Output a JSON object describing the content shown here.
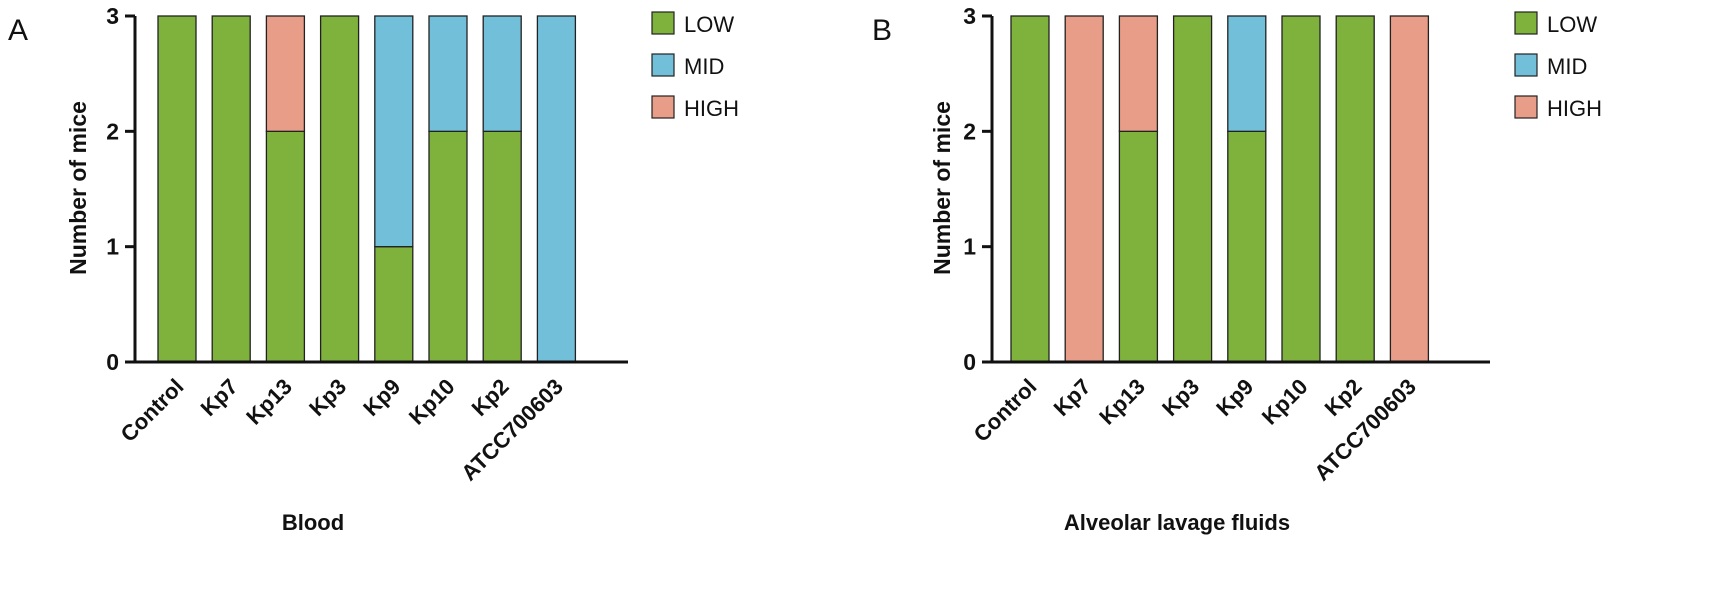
{
  "colors": {
    "LOW": "#7fb13d",
    "MID": "#72bfd9",
    "HIGH": "#e89d88"
  },
  "chart_data": [
    {
      "type": "bar",
      "stacked": true,
      "panel": "A",
      "title": "",
      "xlabel": "Blood",
      "ylabel": "Number of mice",
      "ylim": [
        0,
        3
      ],
      "yticks": [
        "0",
        "1",
        "2",
        "3"
      ],
      "legend": [
        "LOW",
        "MID",
        "HIGH"
      ],
      "legend_position": "right",
      "categories": [
        "Control",
        "Kp7",
        "Kp13",
        "Kp3",
        "Kp9",
        "Kp10",
        "Kp2",
        "ATCC700603"
      ],
      "series": [
        {
          "name": "LOW",
          "values": [
            3,
            3,
            2,
            3,
            1,
            2,
            2,
            0
          ]
        },
        {
          "name": "MID",
          "values": [
            0,
            0,
            0,
            0,
            2,
            1,
            1,
            3
          ]
        },
        {
          "name": "HIGH",
          "values": [
            0,
            0,
            1,
            0,
            0,
            0,
            0,
            0
          ]
        }
      ]
    },
    {
      "type": "bar",
      "stacked": true,
      "panel": "B",
      "title": "",
      "xlabel": "Alveolar lavage fluids",
      "ylabel": "Number of mice",
      "ylim": [
        0,
        3
      ],
      "yticks": [
        "0",
        "1",
        "2",
        "3"
      ],
      "legend": [
        "LOW",
        "MID",
        "HIGH"
      ],
      "legend_position": "right",
      "categories": [
        "Control",
        "Kp7",
        "Kp13",
        "Kp3",
        "Kp9",
        "Kp10",
        "Kp2",
        "ATCC700603"
      ],
      "series": [
        {
          "name": "LOW",
          "values": [
            3,
            0,
            2,
            3,
            2,
            3,
            3,
            0
          ]
        },
        {
          "name": "MID",
          "values": [
            0,
            0,
            0,
            0,
            1,
            0,
            0,
            0
          ]
        },
        {
          "name": "HIGH",
          "values": [
            0,
            3,
            1,
            0,
            0,
            0,
            0,
            3
          ]
        }
      ]
    }
  ]
}
